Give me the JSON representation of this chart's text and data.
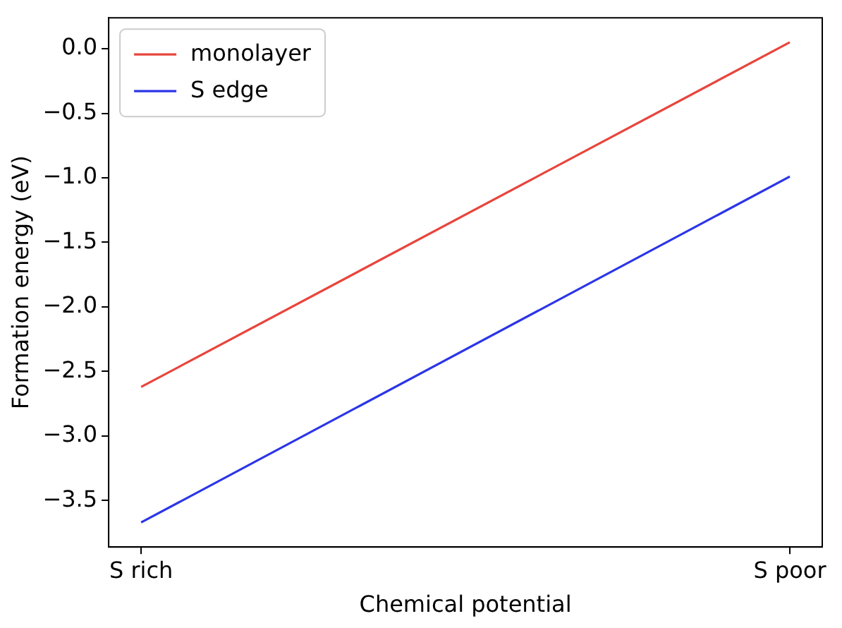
{
  "chart_data": {
    "type": "line",
    "xlabel": "Chemical potential",
    "ylabel": "Formation energy (eV)",
    "categories": [
      "S rich",
      "S poor"
    ],
    "series": [
      {
        "name": "monolayer",
        "color": "#e8453c",
        "values": [
          -2.62,
          0.05
        ]
      },
      {
        "name": "S edge",
        "color": "#2b35e8",
        "values": [
          -3.67,
          -0.99
        ]
      }
    ],
    "ylim": [
      -3.86,
      0.24
    ],
    "yticks": [
      {
        "value": -3.5,
        "label": "−3.5"
      },
      {
        "value": -3,
        "label": "−3.0"
      },
      {
        "value": -2.5,
        "label": "−2.5"
      },
      {
        "value": -2,
        "label": "−2.0"
      },
      {
        "value": -1.5,
        "label": "−1.5"
      },
      {
        "value": -1,
        "label": "−1.0"
      },
      {
        "value": -0.5,
        "label": "−0.5"
      },
      {
        "value": 0,
        "label": "0.0"
      }
    ],
    "grid": false,
    "legend": "top left",
    "marker": "none",
    "line_style": "solid"
  }
}
